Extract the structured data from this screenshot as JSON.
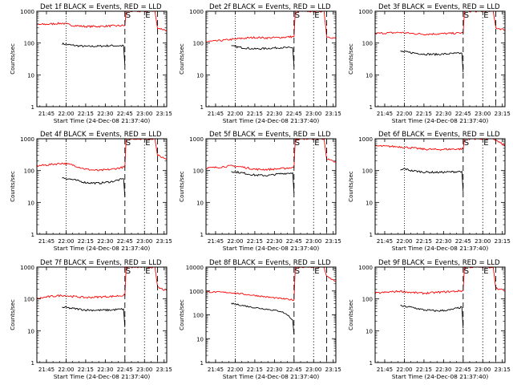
{
  "figure": {
    "subtitle_prefix": "Start Time (",
    "start_time": "24-Dec-08 21:37:40",
    "subtitle_suffix": ")",
    "ylabel": "Counts/sec",
    "xtick_labels": [
      "21:45",
      "22:00",
      "22:15",
      "22:30",
      "22:45",
      "23:00",
      "23:15"
    ],
    "marker_labels": {
      "start": "S",
      "end": "E"
    },
    "colors": {
      "events": "#000000",
      "lld": "#ff0000",
      "axes": "#000000",
      "background": "#ffffff"
    }
  },
  "chart_data": [
    {
      "type": "line",
      "title": "Det 1f BLACK = Events, RED = LLD",
      "ylim": [
        1,
        1000
      ],
      "yscale": "log",
      "ytick_labels": [
        "1",
        "10",
        "100",
        "1000"
      ],
      "xlim": [
        "21:37:40",
        "23:17:00"
      ],
      "dotted_x": [
        "22:00"
      ],
      "dashed_x": [
        "22:45",
        "23:00",
        "23:10"
      ],
      "series": [
        {
          "name": "Events",
          "color": "#000000",
          "x": [
            "21:57",
            "22:05",
            "22:15",
            "22:25",
            "22:35",
            "22:44",
            "22:45"
          ],
          "y": [
            95,
            85,
            78,
            80,
            83,
            82,
            20
          ]
        },
        {
          "name": "LLD",
          "color": "#ff0000",
          "x": [
            "21:37",
            "21:45",
            "21:57",
            "22:05",
            "22:15",
            "22:25",
            "22:35",
            "22:45",
            "22:46",
            "22:52",
            "23:05",
            "23:08",
            "23:10",
            "23:17"
          ],
          "y": [
            380,
            390,
            420,
            360,
            330,
            335,
            345,
            355,
            1000,
            1000,
            1000,
            1000,
            300,
            250
          ]
        }
      ]
    },
    {
      "type": "line",
      "title": "Det 2f BLACK = Events, RED = LLD",
      "ylim": [
        1,
        1000
      ],
      "yscale": "log",
      "ytick_labels": [
        "1",
        "10",
        "100",
        "1000"
      ],
      "xlim": [
        "21:37:40",
        "23:17:00"
      ],
      "dotted_x": [
        "22:00"
      ],
      "dashed_x": [
        "22:45",
        "23:00",
        "23:10"
      ],
      "series": [
        {
          "name": "Events",
          "color": "#000000",
          "x": [
            "21:57",
            "22:05",
            "22:15",
            "22:25",
            "22:35",
            "22:44",
            "22:45"
          ],
          "y": [
            80,
            72,
            65,
            68,
            72,
            70,
            18
          ]
        },
        {
          "name": "LLD",
          "color": "#ff0000",
          "x": [
            "21:37",
            "21:45",
            "21:57",
            "22:05",
            "22:15",
            "22:25",
            "22:35",
            "22:45",
            "22:46",
            "22:52",
            "23:05",
            "23:08",
            "23:10",
            "23:17"
          ],
          "y": [
            110,
            115,
            130,
            140,
            150,
            145,
            150,
            160,
            1000,
            1000,
            1000,
            1000,
            160,
            140
          ]
        }
      ]
    },
    {
      "type": "line",
      "title": "Det 3f BLACK = Events, RED = LLD",
      "ylim": [
        1,
        1000
      ],
      "yscale": "log",
      "ytick_labels": [
        "1",
        "10",
        "100",
        "1000"
      ],
      "xlim": [
        "21:37:40",
        "23:17:00"
      ],
      "dotted_x": [
        "22:00"
      ],
      "dashed_x": [
        "22:45",
        "23:00",
        "23:10"
      ],
      "series": [
        {
          "name": "Events",
          "color": "#000000",
          "x": [
            "21:57",
            "22:05",
            "22:15",
            "22:25",
            "22:35",
            "22:44",
            "22:45"
          ],
          "y": [
            55,
            50,
            45,
            44,
            46,
            48,
            12
          ]
        },
        {
          "name": "LLD",
          "color": "#ff0000",
          "x": [
            "21:37",
            "21:45",
            "21:57",
            "22:05",
            "22:15",
            "22:25",
            "22:35",
            "22:45",
            "22:46",
            "22:52",
            "23:05",
            "23:08",
            "23:10",
            "23:17"
          ],
          "y": [
            200,
            205,
            215,
            200,
            190,
            195,
            200,
            210,
            1000,
            1000,
            1000,
            1000,
            300,
            260
          ]
        }
      ]
    },
    {
      "type": "line",
      "title": "Det 4f BLACK = Events, RED = LLD",
      "ylim": [
        1,
        1000
      ],
      "yscale": "log",
      "ytick_labels": [
        "1",
        "10",
        "100",
        "1000"
      ],
      "xlim": [
        "21:37:40",
        "23:17:00"
      ],
      "dotted_x": [
        "22:00"
      ],
      "dashed_x": [
        "22:45",
        "23:00",
        "23:10"
      ],
      "series": [
        {
          "name": "Events",
          "color": "#000000",
          "x": [
            "21:57",
            "22:05",
            "22:15",
            "22:25",
            "22:35",
            "22:44",
            "22:45"
          ],
          "y": [
            60,
            52,
            42,
            40,
            45,
            55,
            15
          ]
        },
        {
          "name": "LLD",
          "color": "#ff0000",
          "x": [
            "21:37",
            "21:45",
            "21:57",
            "22:05",
            "22:15",
            "22:25",
            "22:35",
            "22:45",
            "22:46",
            "22:52",
            "23:05",
            "23:08",
            "23:10",
            "23:17"
          ],
          "y": [
            140,
            150,
            170,
            150,
            110,
            100,
            110,
            130,
            1000,
            1000,
            1000,
            1000,
            300,
            230
          ]
        }
      ]
    },
    {
      "type": "line",
      "title": "Det 5f BLACK = Events, RED = LLD",
      "ylim": [
        1,
        1000
      ],
      "yscale": "log",
      "ytick_labels": [
        "1",
        "10",
        "100",
        "1000"
      ],
      "xlim": [
        "21:37:40",
        "23:17:00"
      ],
      "dotted_x": [
        "22:00"
      ],
      "dashed_x": [
        "22:45",
        "23:00",
        "23:10"
      ],
      "series": [
        {
          "name": "Events",
          "color": "#000000",
          "x": [
            "21:57",
            "22:05",
            "22:15",
            "22:25",
            "22:35",
            "22:44",
            "22:45"
          ],
          "y": [
            95,
            85,
            72,
            70,
            80,
            85,
            20
          ]
        },
        {
          "name": "LLD",
          "color": "#ff0000",
          "x": [
            "21:37",
            "21:45",
            "21:57",
            "22:05",
            "22:15",
            "22:25",
            "22:35",
            "22:45",
            "22:46",
            "22:52",
            "23:05",
            "23:08",
            "23:10",
            "23:17"
          ],
          "y": [
            120,
            125,
            140,
            130,
            110,
            108,
            115,
            125,
            1000,
            1000,
            1000,
            1000,
            230,
            180
          ]
        }
      ]
    },
    {
      "type": "line",
      "title": "Det 6f BLACK = Events, RED = LLD",
      "ylim": [
        1,
        1000
      ],
      "yscale": "log",
      "ytick_labels": [
        "1",
        "10",
        "100",
        "1000"
      ],
      "xlim": [
        "21:37:40",
        "23:17:00"
      ],
      "dotted_x": [
        "22:00"
      ],
      "dashed_x": [
        "22:45",
        "23:00",
        "23:10"
      ],
      "series": [
        {
          "name": "Events",
          "color": "#000000",
          "x": [
            "21:57",
            "22:00",
            "22:05",
            "22:15",
            "22:25",
            "22:35",
            "22:44",
            "22:45"
          ],
          "y": [
            100,
            115,
            100,
            90,
            88,
            90,
            95,
            22
          ]
        },
        {
          "name": "LLD",
          "color": "#ff0000",
          "x": [
            "21:37",
            "21:45",
            "21:57",
            "22:05",
            "22:15",
            "22:25",
            "22:35",
            "22:45",
            "22:46",
            "22:52",
            "23:05",
            "23:08",
            "23:10",
            "23:17"
          ],
          "y": [
            600,
            580,
            560,
            520,
            470,
            460,
            470,
            480,
            1000,
            1000,
            1000,
            1000,
            900,
            600
          ]
        }
      ]
    },
    {
      "type": "line",
      "title": "Det 7f BLACK = Events, RED = LLD",
      "ylim": [
        1,
        1000
      ],
      "yscale": "log",
      "ytick_labels": [
        "1",
        "10",
        "100",
        "1000"
      ],
      "xlim": [
        "21:37:40",
        "23:17:00"
      ],
      "dotted_x": [
        "22:00"
      ],
      "dashed_x": [
        "22:45",
        "23:00",
        "23:10"
      ],
      "series": [
        {
          "name": "Events",
          "color": "#000000",
          "x": [
            "21:57",
            "22:05",
            "22:15",
            "22:25",
            "22:35",
            "22:44",
            "22:45"
          ],
          "y": [
            55,
            50,
            45,
            44,
            45,
            48,
            13
          ]
        },
        {
          "name": "LLD",
          "color": "#ff0000",
          "x": [
            "21:37",
            "21:45",
            "21:57",
            "22:05",
            "22:15",
            "22:25",
            "22:35",
            "22:45",
            "22:46",
            "22:52",
            "23:05",
            "23:08",
            "23:10",
            "23:17"
          ],
          "y": [
            100,
            115,
            130,
            120,
            110,
            115,
            120,
            130,
            1000,
            1000,
            1000,
            1000,
            230,
            180
          ]
        }
      ]
    },
    {
      "type": "line",
      "title": "Det 8f BLACK = Events, RED = LLD",
      "ylim": [
        1,
        10000
      ],
      "yscale": "log",
      "ytick_labels": [
        "1",
        "10",
        "100",
        "1000",
        "10000"
      ],
      "xlim": [
        "21:37:40",
        "23:17:00"
      ],
      "dotted_x": [
        "22:00"
      ],
      "dashed_x": [
        "22:45",
        "23:00",
        "23:10"
      ],
      "series": [
        {
          "name": "Events",
          "color": "#000000",
          "x": [
            "21:57",
            "22:05",
            "22:15",
            "22:25",
            "22:35",
            "22:40",
            "22:44",
            "22:45"
          ],
          "y": [
            300,
            250,
            200,
            170,
            140,
            100,
            60,
            15
          ]
        },
        {
          "name": "LLD",
          "color": "#ff0000",
          "x": [
            "21:37",
            "21:45",
            "21:57",
            "22:05",
            "22:15",
            "22:25",
            "22:35",
            "22:45",
            "22:46",
            "22:52",
            "23:05",
            "23:08",
            "23:10",
            "23:17"
          ],
          "y": [
            900,
            900,
            850,
            750,
            650,
            550,
            480,
            420,
            10000,
            10000,
            10000,
            10000,
            4000,
            2500
          ]
        }
      ]
    },
    {
      "type": "line",
      "title": "Det 9f BLACK = Events, RED = LLD",
      "ylim": [
        1,
        1000
      ],
      "yscale": "log",
      "ytick_labels": [
        "1",
        "10",
        "100",
        "1000"
      ],
      "xlim": [
        "21:37:40",
        "23:17:00"
      ],
      "dotted_x": [
        "22:00"
      ],
      "dashed_x": [
        "22:45",
        "23:00",
        "23:10"
      ],
      "series": [
        {
          "name": "Events",
          "color": "#000000",
          "x": [
            "21:57",
            "22:05",
            "22:15",
            "22:25",
            "22:35",
            "22:44",
            "22:45"
          ],
          "y": [
            60,
            55,
            45,
            42,
            45,
            55,
            12
          ]
        },
        {
          "name": "LLD",
          "color": "#ff0000",
          "x": [
            "21:37",
            "21:45",
            "21:57",
            "22:05",
            "22:15",
            "22:25",
            "22:35",
            "22:45",
            "22:46",
            "22:52",
            "23:05",
            "23:08",
            "23:10",
            "23:17"
          ],
          "y": [
            150,
            160,
            175,
            160,
            150,
            160,
            170,
            180,
            1000,
            1000,
            1000,
            1000,
            220,
            180
          ]
        }
      ]
    }
  ]
}
